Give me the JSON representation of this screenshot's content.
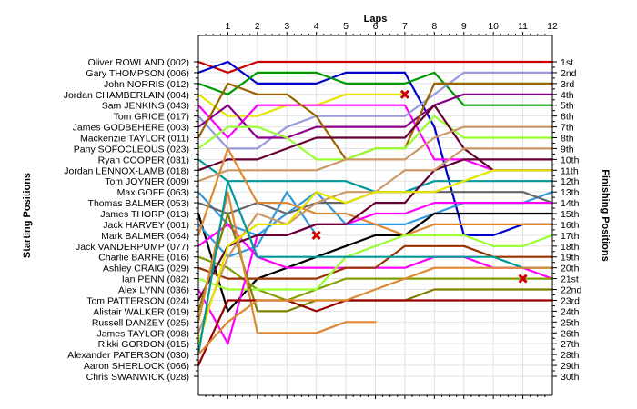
{
  "chart_data": {
    "type": "line",
    "title": "",
    "xlabel": "Laps",
    "ylabel_left": "Starting Positions",
    "ylabel_right": "Finishing Positions",
    "x": [
      0,
      1,
      2,
      3,
      4,
      5,
      6,
      7,
      8,
      9,
      10,
      11,
      12
    ],
    "lap_labels": [
      "1",
      "2",
      "3",
      "4",
      "5",
      "6",
      "7",
      "8",
      "9",
      "10",
      "11",
      "12"
    ],
    "xlim": [
      0,
      12
    ],
    "ylim": [
      1,
      30
    ],
    "grid": true,
    "starting_grid": [
      "Oliver ROWLAND (002)",
      "Gary THOMPSON (006)",
      "John NORRIS (012)",
      "Jordan CHAMBERLAIN (004)",
      "Sam JENKINS (043)",
      "Tom GRICE (017)",
      "James GODBEHERE (003)",
      "Mackenzie TAYLOR (011)",
      "Pany SOFOCLEOUS (023)",
      "Ryan COOPER (031)",
      "Jordan LENNOX-LAMB (018)",
      "Tom JOYNER (009)",
      "Max GOFF (063)",
      "Thomas BALMER (053)",
      "James THORP (013)",
      "Jack HARVEY (001)",
      "Mark BALMER (064)",
      "Jack VANDERPUMP (077)",
      "Charlie BARRE (016)",
      "Ashley CRAIG (029)",
      "Ian PENN (082)",
      "Alex LYNN (036)",
      "Tom PATTERSON (024)",
      "Alistair WALKER (019)",
      "Russell DANZEY (025)",
      "James TAYLOR (098)",
      "Rikki GORDON (015)",
      "Alexander PATERSON (030)",
      "Aaron SHERLOCK (066)",
      "Chris SWANWICK (028)"
    ],
    "finishing_positions": [
      "1st",
      "2nd",
      "3rd",
      "4th",
      "5th",
      "6th",
      "7th",
      "8th",
      "9th",
      "10th",
      "11th",
      "12th",
      "13th",
      "14th",
      "15th",
      "16th",
      "17th",
      "18th",
      "19th",
      "20th",
      "21st",
      "22nd",
      "23rd",
      "24th",
      "25th",
      "26th",
      "27th",
      "28th",
      "29th",
      "30th"
    ],
    "series": [
      {
        "color": "#cc0000",
        "values": [
          1,
          2,
          1,
          1,
          1,
          1,
          1,
          1,
          1,
          1,
          1,
          1,
          1
        ]
      },
      {
        "color": "#0000cc",
        "values": [
          2,
          1,
          3,
          3,
          3,
          2,
          2,
          2,
          7,
          17,
          17,
          16,
          16
        ]
      },
      {
        "color": "#009900",
        "values": [
          3,
          4,
          2,
          2,
          2,
          3,
          3,
          3,
          2,
          5,
          5,
          5,
          5
        ]
      },
      {
        "color": "#e6e600",
        "values": [
          4,
          6,
          6,
          5,
          5,
          4,
          4,
          4,
          null,
          null,
          null,
          null,
          null
        ]
      },
      {
        "color": "#ff00ff",
        "values": [
          5,
          8,
          5,
          5,
          5,
          5,
          5,
          5,
          10,
          10,
          11,
          11,
          11
        ]
      },
      {
        "color": "#9999dd",
        "values": [
          6,
          9,
          9,
          7,
          6,
          6,
          6,
          6,
          4,
          2,
          2,
          2,
          2
        ]
      },
      {
        "color": "#8b008b",
        "values": [
          7,
          5,
          8,
          8,
          7,
          7,
          7,
          7,
          5,
          4,
          4,
          4,
          4
        ]
      },
      {
        "color": "#996600",
        "values": [
          8,
          3,
          4,
          4,
          6,
          10,
          9,
          9,
          3,
          3,
          3,
          3,
          3
        ]
      },
      {
        "color": "#99ff33",
        "values": [
          9,
          7,
          7,
          8,
          10,
          10,
          9,
          9,
          6,
          8,
          8,
          8,
          8
        ]
      },
      {
        "color": "#009999",
        "values": [
          10,
          12,
          12,
          12,
          12,
          12,
          13,
          13,
          12,
          12,
          12,
          12,
          12
        ]
      },
      {
        "color": "#660033",
        "values": [
          11,
          10,
          10,
          9,
          8,
          8,
          8,
          8,
          5,
          9,
          11,
          11,
          11
        ]
      },
      {
        "color": "#cc9966",
        "values": [
          12,
          11,
          11,
          11,
          11,
          10,
          10,
          10,
          8,
          7,
          7,
          7,
          7
        ]
      },
      {
        "color": "#3399dd",
        "values": [
          13,
          16,
          17,
          15,
          13,
          16,
          16,
          16,
          15,
          14,
          14,
          14,
          13
        ]
      },
      {
        "color": "#666666",
        "values": [
          14,
          15,
          14,
          15,
          14,
          14,
          13,
          13,
          13,
          13,
          13,
          13,
          14
        ]
      },
      {
        "color": "#000000",
        "values": [
          15,
          24,
          21,
          20,
          19,
          18,
          17,
          17,
          15,
          15,
          15,
          15,
          15
        ]
      },
      {
        "color": "#3399dd",
        "values": [
          16,
          19,
          18,
          13,
          17,
          null,
          null,
          null,
          null,
          null,
          null,
          null,
          null
        ]
      },
      {
        "color": "#dd8833",
        "values": [
          17,
          9,
          14,
          14,
          15,
          15,
          16,
          17,
          16,
          16,
          16,
          16,
          16
        ]
      },
      {
        "color": "#ff00ff",
        "values": [
          18,
          16,
          19,
          20,
          20,
          20,
          20,
          20,
          19,
          19,
          20,
          20,
          21
        ]
      },
      {
        "color": "#7f9f00",
        "values": [
          19,
          20,
          22,
          23,
          22,
          21,
          21,
          21,
          21,
          21,
          21,
          21,
          21
        ]
      },
      {
        "color": "#993300",
        "values": [
          20,
          21,
          21,
          21,
          21,
          20,
          20,
          18,
          18,
          18,
          19,
          19,
          19
        ]
      },
      {
        "color": "#99ff33",
        "values": [
          21,
          22,
          22,
          22,
          22,
          19,
          18,
          17,
          17,
          17,
          18,
          18,
          17
        ]
      },
      {
        "color": "#ff00ff",
        "values": [
          22,
          27,
          17,
          17,
          16,
          16,
          15,
          15,
          14,
          14,
          14,
          14,
          14
        ]
      },
      {
        "color": "#660033",
        "values": [
          23,
          18,
          17,
          17,
          16,
          16,
          14,
          14,
          11,
          10,
          10,
          10,
          10
        ]
      },
      {
        "color": "#808000",
        "values": [
          24,
          15,
          24,
          24,
          23,
          23,
          23,
          23,
          22,
          22,
          22,
          22,
          22
        ]
      },
      {
        "color": "#dd8833",
        "values": [
          25,
          13,
          26,
          26,
          26,
          25,
          25,
          null,
          null,
          null,
          null,
          null,
          null
        ]
      },
      {
        "color": "#cc9966",
        "values": [
          26,
          19,
          15,
          16,
          14,
          13,
          13,
          11,
          11,
          9,
          9,
          9,
          9
        ]
      },
      {
        "color": "#e6e600",
        "values": [
          27,
          18,
          16,
          16,
          13,
          14,
          13,
          13,
          13,
          12,
          11,
          11,
          11
        ]
      },
      {
        "color": "#009999",
        "values": [
          28,
          12,
          19,
          19,
          19,
          19,
          19,
          19,
          19,
          19,
          19,
          20,
          20
        ]
      },
      {
        "color": "#990000",
        "values": [
          29,
          23,
          23,
          23,
          24,
          23,
          23,
          23,
          23,
          23,
          23,
          23,
          23
        ]
      },
      {
        "color": "#dd8833",
        "values": [
          28,
          25,
          23,
          23,
          23,
          23,
          22,
          21,
          20,
          20,
          20,
          20,
          20
        ]
      }
    ],
    "retirement_markers": [
      {
        "lap": 7,
        "position": 4,
        "color": "#cc0000"
      },
      {
        "lap": 4,
        "position": 17,
        "color": "#cc0000"
      },
      {
        "lap": 11,
        "position": 21,
        "color": "#cc0000"
      }
    ]
  }
}
